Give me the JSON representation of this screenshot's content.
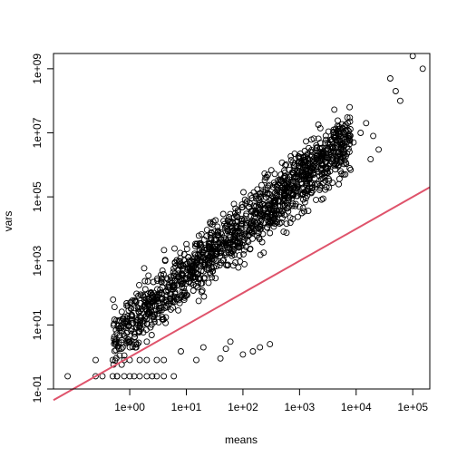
{
  "chart_data": {
    "type": "scatter",
    "title": "",
    "xlabel": "means",
    "ylabel": "vars",
    "xscale": "log",
    "yscale": "log",
    "xlim": [
      0.045,
      200000
    ],
    "ylim": [
      0.1,
      3000000000
    ],
    "x_ticks": [
      {
        "value": 1,
        "label": "1e+00"
      },
      {
        "value": 10,
        "label": "1e+01"
      },
      {
        "value": 100,
        "label": "1e+02"
      },
      {
        "value": 1000,
        "label": "1e+03"
      },
      {
        "value": 10000,
        "label": "1e+04"
      },
      {
        "value": 100000,
        "label": "1e+05"
      }
    ],
    "y_ticks": [
      {
        "value": 0.1,
        "label": "1e-01"
      },
      {
        "value": 10,
        "label": "1e+01"
      },
      {
        "value": 1000,
        "label": "1e+03"
      },
      {
        "value": 100000,
        "label": "1e+05"
      },
      {
        "value": 10000000,
        "label": "1e+07"
      },
      {
        "value": 1000000000,
        "label": "1e+09"
      }
    ],
    "grid": false,
    "series": [
      {
        "kind": "points",
        "color": "#000000",
        "trend": {
          "slope": 1.9,
          "intercept": 2.4,
          "spread": 0.45,
          "count": 1400
        },
        "points": [
          [
            0.08,
            0.25
          ],
          [
            0.25,
            0.25
          ],
          [
            0.33,
            0.25
          ],
          [
            0.5,
            0.25
          ],
          [
            0.6,
            0.25
          ],
          [
            0.8,
            0.25
          ],
          [
            1.0,
            0.25
          ],
          [
            1.2,
            0.25
          ],
          [
            1.5,
            0.25
          ],
          [
            2.0,
            0.25
          ],
          [
            2.5,
            0.25
          ],
          [
            3.0,
            0.25
          ],
          [
            4.0,
            0.25
          ],
          [
            6.0,
            0.25
          ],
          [
            0.25,
            0.8
          ],
          [
            0.5,
            0.8
          ],
          [
            0.8,
            0.8
          ],
          [
            1.0,
            0.8
          ],
          [
            1.5,
            0.8
          ],
          [
            2.0,
            0.8
          ],
          [
            3.0,
            0.8
          ],
          [
            4.0,
            0.8
          ],
          [
            0.75,
            2.0
          ],
          [
            1.0,
            2.0
          ],
          [
            1.3,
            2.0
          ],
          [
            2.0,
            3.0
          ],
          [
            1.0,
            3.0
          ],
          [
            1.2,
            6.0
          ],
          [
            1.5,
            10.0
          ],
          [
            2.0,
            15.0
          ],
          [
            15,
            0.8
          ],
          [
            40,
            0.9
          ],
          [
            100,
            1.2
          ],
          [
            200,
            2.0
          ],
          [
            300,
            2.5
          ],
          [
            8,
            1.5
          ],
          [
            20,
            2.0
          ],
          [
            50,
            1.8
          ],
          [
            60,
            3.0
          ],
          [
            150,
            1.5
          ],
          [
            100000,
            2500000000
          ],
          [
            150000,
            1000000000
          ],
          [
            40000,
            500000000
          ],
          [
            50000,
            200000000
          ],
          [
            60000,
            100000000
          ],
          [
            7000,
            30000000
          ],
          [
            15000,
            20000000
          ],
          [
            20000,
            8000000
          ],
          [
            25000,
            3000000
          ],
          [
            4000,
            2000000
          ],
          [
            3000,
            3000000
          ],
          [
            9000,
            5000000
          ],
          [
            12000,
            10000000
          ],
          [
            18000,
            1500000
          ],
          [
            5000,
            1000000
          ],
          [
            2000,
            1500000
          ],
          [
            6000,
            500000
          ],
          [
            3000,
            200000
          ],
          [
            8000,
            700000
          ],
          [
            1500,
            400000
          ]
        ]
      },
      {
        "kind": "line",
        "color": "#DF536B",
        "from": [
          0.045,
          0.045
        ],
        "to": [
          200000,
          200000
        ]
      }
    ]
  }
}
